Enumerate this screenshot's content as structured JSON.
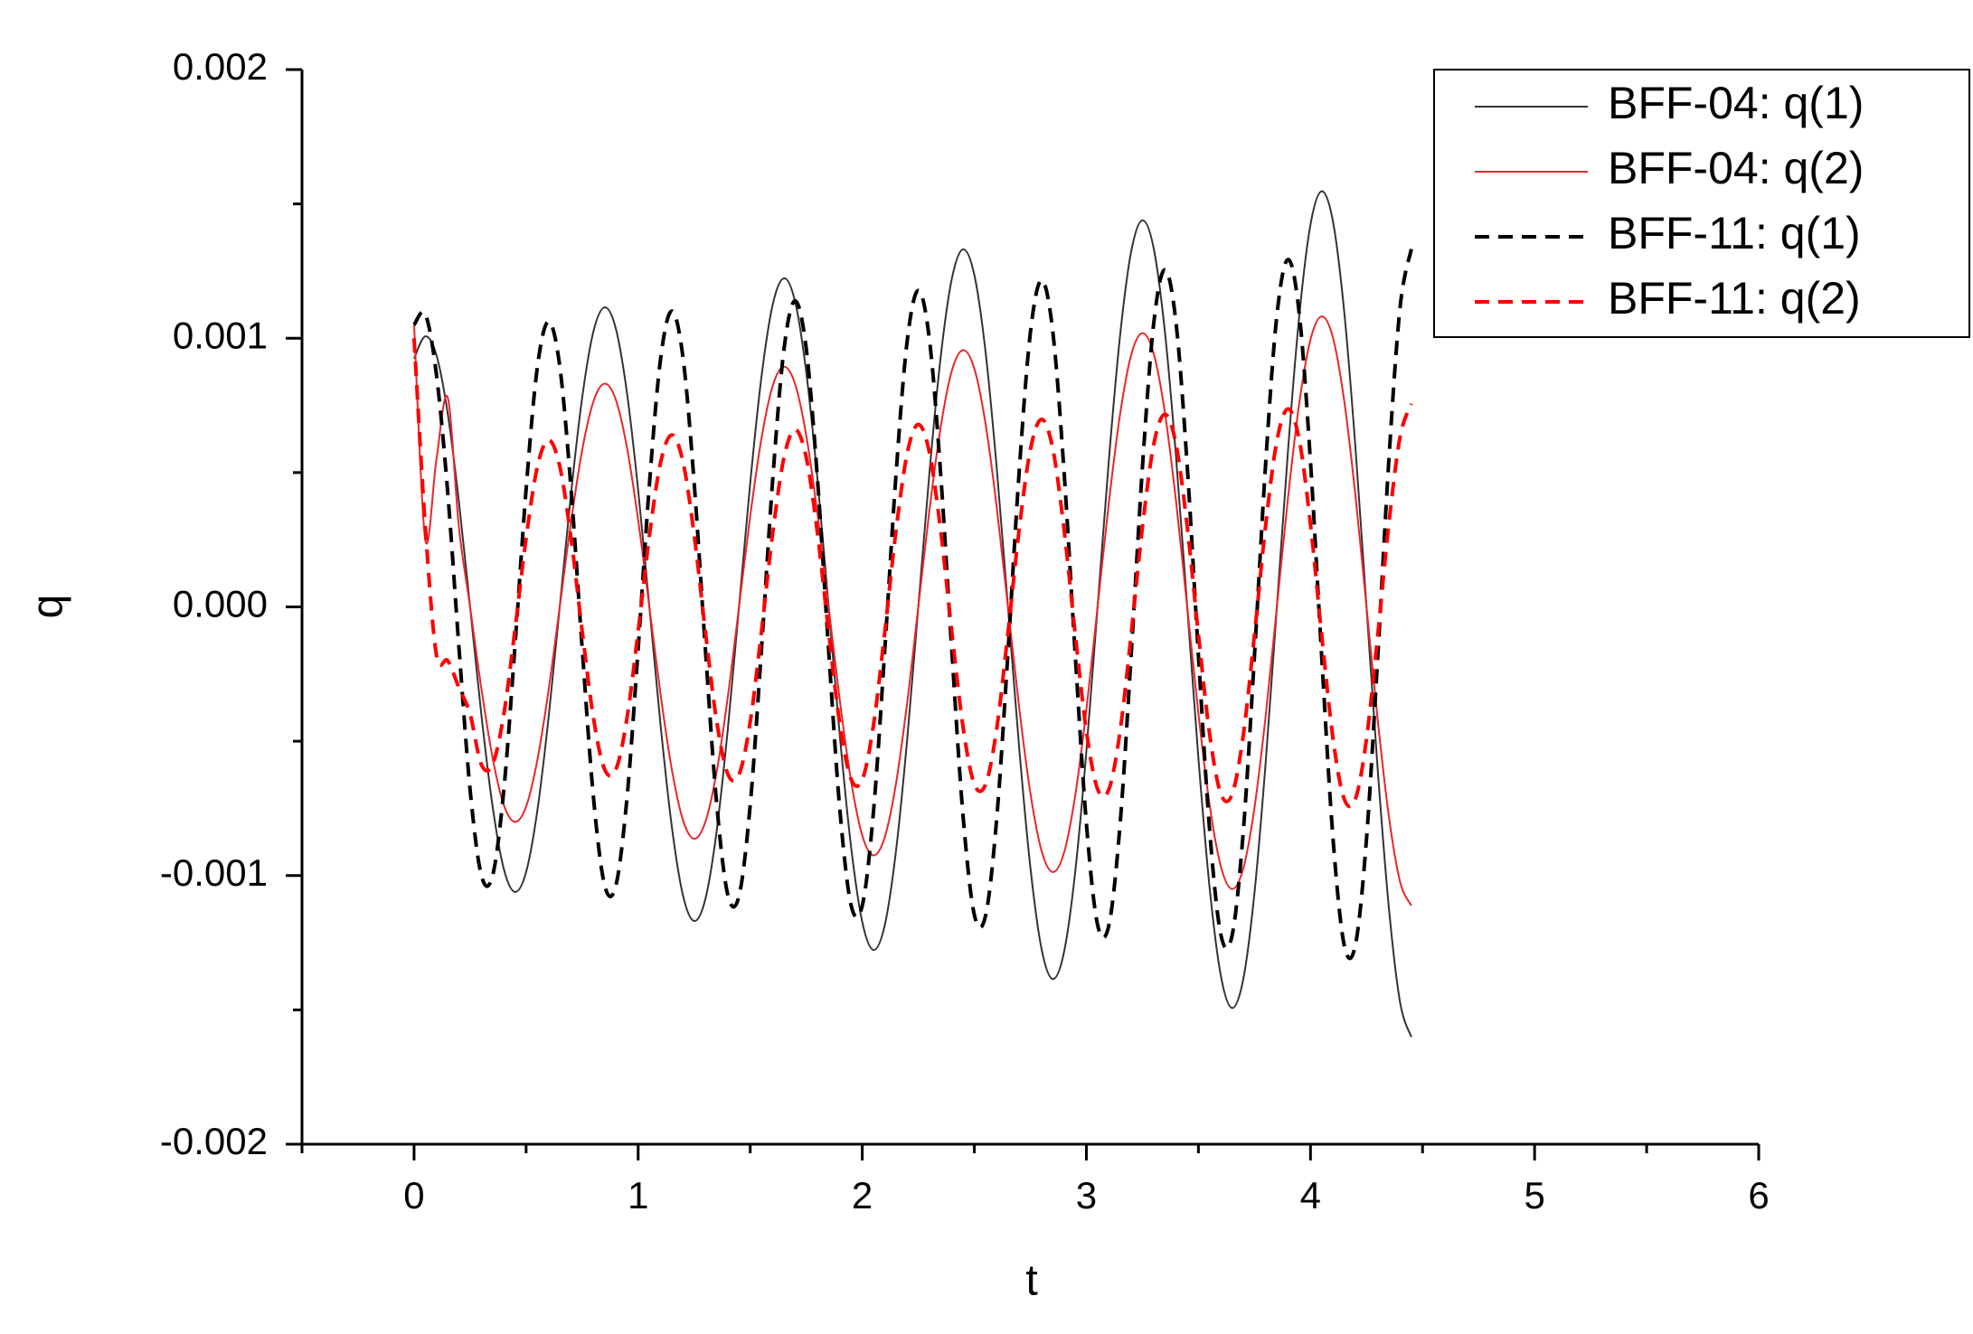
{
  "chart_data": {
    "type": "line",
    "x_label": "t",
    "y_label": "q",
    "xlim": [
      -0.5,
      6
    ],
    "ylim": [
      -0.002,
      0.002
    ],
    "xticks": [
      0,
      1,
      2,
      3,
      4,
      5,
      6
    ],
    "yticks": [
      -0.002,
      -0.001,
      {
        "value": 0,
        "label": "0.000"
      },
      0.001,
      0.002
    ],
    "grid": false,
    "legend": "upper right",
    "x": [
      0,
      0.05,
      0.1,
      0.15,
      0.2,
      0.25,
      0.3,
      0.35,
      0.4,
      0.45,
      0.5,
      0.55,
      0.6,
      0.65,
      0.7,
      0.75,
      0.8,
      0.85,
      0.9,
      0.95,
      1,
      1.05,
      1.1,
      1.15,
      1.2,
      1.25,
      1.3,
      1.35,
      1.4,
      1.45,
      1.5,
      1.55,
      1.6,
      1.65,
      1.7,
      1.75,
      1.8,
      1.85,
      1.9,
      1.95,
      2,
      2.05,
      2.1,
      2.15,
      2.2,
      2.25,
      2.3,
      2.35,
      2.4,
      2.45,
      2.5,
      2.55,
      2.6,
      2.65,
      2.7,
      2.75,
      2.8,
      2.85,
      2.9,
      2.95,
      3,
      3.05,
      3.1,
      3.15,
      3.2,
      3.25,
      3.3,
      3.35,
      3.4,
      3.45,
      3.5,
      3.55,
      3.6,
      3.65,
      3.7,
      3.75,
      3.8,
      3.85,
      3.9,
      3.95,
      4,
      4.05,
      4.1,
      4.15,
      4.2,
      4.25,
      4.3,
      4.35,
      4.4,
      4.45
    ],
    "series": [
      {
        "name": "BFF-04: q(1)",
        "color": "#333333",
        "linestyle": "solid",
        "values": [
          0.000924,
          0.001007,
          0.000937,
          0.000721,
          0.000393,
          0,
          -0.000399,
          -0.00074,
          -0.000974,
          -0.001061,
          -0.000987,
          -0.000759,
          -0.000414,
          0,
          0.000419,
          0.000778,
          0.001024,
          0.001115,
          0.001037,
          0.000797,
          0.000435,
          0,
          -0.00044,
          -0.000817,
          -0.001074,
          -0.001169,
          -0.001087,
          -0.000836,
          -0.000455,
          0,
          0.000461,
          0.000855,
          0.001124,
          0.001223,
          0.001137,
          0.000874,
          0.000476,
          0,
          -0.000481,
          -0.000893,
          -0.001173,
          -0.001277,
          -0.001186,
          -0.000912,
          -0.000497,
          0,
          0.000502,
          0.000931,
          0.001223,
          0.001331,
          0.001236,
          0.00095,
          0.000517,
          0,
          -0.000523,
          -0.000969,
          -0.001273,
          -0.001385,
          -0.001286,
          -0.000988,
          -0.000538,
          0,
          0.000543,
          0.001007,
          0.001323,
          0.001439,
          0.001336,
          0.001027,
          0.000559,
          0,
          -0.000564,
          -0.001046,
          -0.001373,
          -0.001493,
          -0.001386,
          -0.001065,
          -0.000579,
          0,
          0.000585,
          0.001084,
          0.001423,
          0.001547,
          0.001436,
          0.001103,
          0.0006,
          0,
          -0.000606,
          -0.001122,
          -0.001473,
          -0.001601
        ]
      },
      {
        "name": "BFF-04: q(2)",
        "color": "#e8262a",
        "linestyle": "solid",
        "values": [
          0.00105,
          0.00025,
          0.00055,
          0.00078,
          0.000299,
          0,
          -0.000302,
          -0.00056,
          -0.000736,
          -0.0008,
          -0.000743,
          -0.000571,
          -0.000311,
          0,
          0.000314,
          0.000583,
          0.000764,
          0.000831,
          0.000772,
          0.000593,
          0.000323,
          0,
          -0.000326,
          -0.000604,
          -0.000794,
          -0.000863,
          -0.0008,
          -0.000615,
          -0.000335,
          0,
          0.000338,
          0.000626,
          0.000822,
          0.000894,
          0.00083,
          0.000638,
          0.000347,
          0,
          -0.00035,
          -0.000648,
          -0.000851,
          -0.000925,
          -0.000858,
          -0.00066,
          -0.000359,
          0,
          0.000362,
          0.00067,
          0.00088,
          0.000956,
          0.000887,
          0.000682,
          0.000371,
          0,
          -0.000374,
          -0.000692,
          -0.000908,
          -0.000987,
          -0.000916,
          -0.000703,
          -0.000383,
          0,
          0.000386,
          0.000715,
          0.000938,
          0.001019,
          0.000944,
          0.000725,
          0.000394,
          0,
          -0.000398,
          -0.000737,
          -0.000966,
          -0.00105,
          -0.000974,
          -0.000748,
          -0.000406,
          0,
          0.000409,
          0.000759,
          0.000995,
          0.001081,
          0.001003,
          0.00077,
          0.000419,
          0,
          -0.000421,
          -0.000781,
          -0.001024,
          -0.001112
        ]
      },
      {
        "name": "BFF-11: q(1)",
        "color": "#000000",
        "linestyle": "dashed",
        "values": [
          0.00105,
          0.00109,
          0.000864,
          0.000428,
          -0.000147,
          -0.00068,
          -0.000998,
          -0.001002,
          -0.000686,
          -0.000149,
          0.000438,
          0.000891,
          0.001062,
          0.000897,
          0.000444,
          -0.000152,
          -0.000705,
          -0.001035,
          -0.001039,
          -0.000712,
          -0.000155,
          0.000454,
          0.000923,
          0.001101,
          0.000928,
          0.00046,
          -0.000158,
          -0.00073,
          -0.001072,
          -0.001076,
          -0.000737,
          -0.00016,
          0.00047,
          0.000955,
          0.001139,
          0.000961,
          0.000476,
          -0.000163,
          -0.000755,
          -0.00111,
          -0.001112,
          -0.000762,
          -0.000166,
          0.000486,
          0.000987,
          0.001178,
          0.000993,
          0.000492,
          -0.000169,
          -0.000781,
          -0.001146,
          -0.00115,
          -0.000787,
          -0.000171,
          0.000502,
          0.00102,
          0.001216,
          0.001026,
          0.000508,
          -0.000174,
          -0.000806,
          -0.001183,
          -0.001186,
          -0.000813,
          -0.000177,
          0.000518,
          0.001052,
          0.001255,
          0.001058,
          0.000524,
          -0.00018,
          -0.000831,
          -0.00122,
          -0.001224,
          -0.000838,
          -0.000182,
          0.000534,
          0.001085,
          0.001293,
          0.001091,
          0.00054,
          -0.000185,
          -0.000856,
          -0.001257,
          -0.00126,
          -0.000863,
          -0.000188,
          0.00055,
          0.001117,
          0.001332
        ]
      },
      {
        "name": "BFF-11: q(2)",
        "color": "#ff0000",
        "linestyle": "dashed",
        "values": [
          0.001,
          0.0003,
          -0.00018,
          -0.0002,
          -0.0003,
          -0.000399,
          -0.000586,
          -0.000587,
          -0.000402,
          -8.7e-05,
          0.000256,
          0.000521,
          0.000621,
          0.000524,
          0.000259,
          -8.9e-05,
          -0.000411,
          -0.000604,
          -0.000606,
          -0.000415,
          -9e-05,
          0.000264,
          0.000537,
          0.00064,
          0.00054,
          0.000267,
          -9.2e-05,
          -0.000424,
          -0.000622,
          -0.000624,
          -0.000428,
          -9.3e-05,
          0.000272,
          0.000553,
          0.00066,
          0.000556,
          0.000275,
          -9.4e-05,
          -0.000437,
          -0.000641,
          -0.000643,
          -0.00044,
          -9.6e-05,
          0.00028,
          0.000569,
          0.000679,
          0.000573,
          0.000283,
          -9.7e-05,
          -0.000449,
          -0.00066,
          -0.000661,
          -0.000453,
          -9.8e-05,
          0.000288,
          0.000585,
          0.000698,
          0.000589,
          0.000291,
          -0.0001,
          -0.000462,
          -0.000678,
          -0.00068,
          -0.000465,
          -0.000101,
          0.000296,
          0.000602,
          0.000717,
          0.000605,
          0.000299,
          -0.000103,
          -0.000474,
          -0.000696,
          -0.000698,
          -0.000478,
          -0.000104,
          0.000304,
          0.000618,
          0.000737,
          0.000621,
          0.000307,
          -0.000105,
          -0.000487,
          -0.000714,
          -0.000716,
          -0.000491,
          -0.000107,
          0.000312,
          0.000634,
          0.000756
        ]
      }
    ]
  }
}
